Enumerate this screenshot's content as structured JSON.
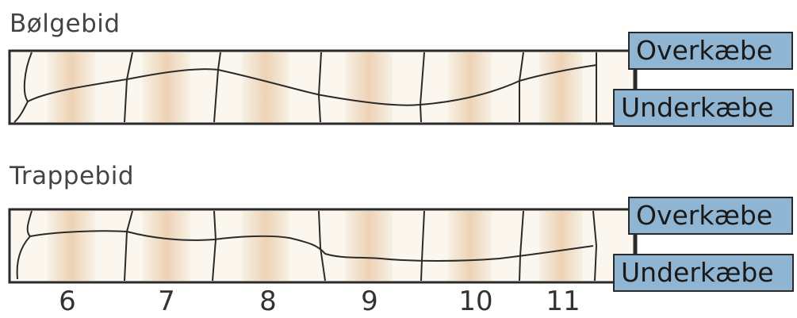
{
  "sections": {
    "top": {
      "title": "Bølgebid",
      "upper_label": "Overkæbe",
      "lower_label": "Underkæbe"
    },
    "bottom": {
      "title": "Trappebid",
      "upper_label": "Overkæbe",
      "lower_label": "Underkæbe"
    }
  },
  "tooth_numbers": [
    "6",
    "7",
    "8",
    "9",
    "10",
    "11"
  ],
  "colors": {
    "label_fill": "#8fb5d2",
    "tooth_base": "#f4ecde",
    "tooth_stripe": "#e9c9a4",
    "outline": "#2a2a2a"
  }
}
